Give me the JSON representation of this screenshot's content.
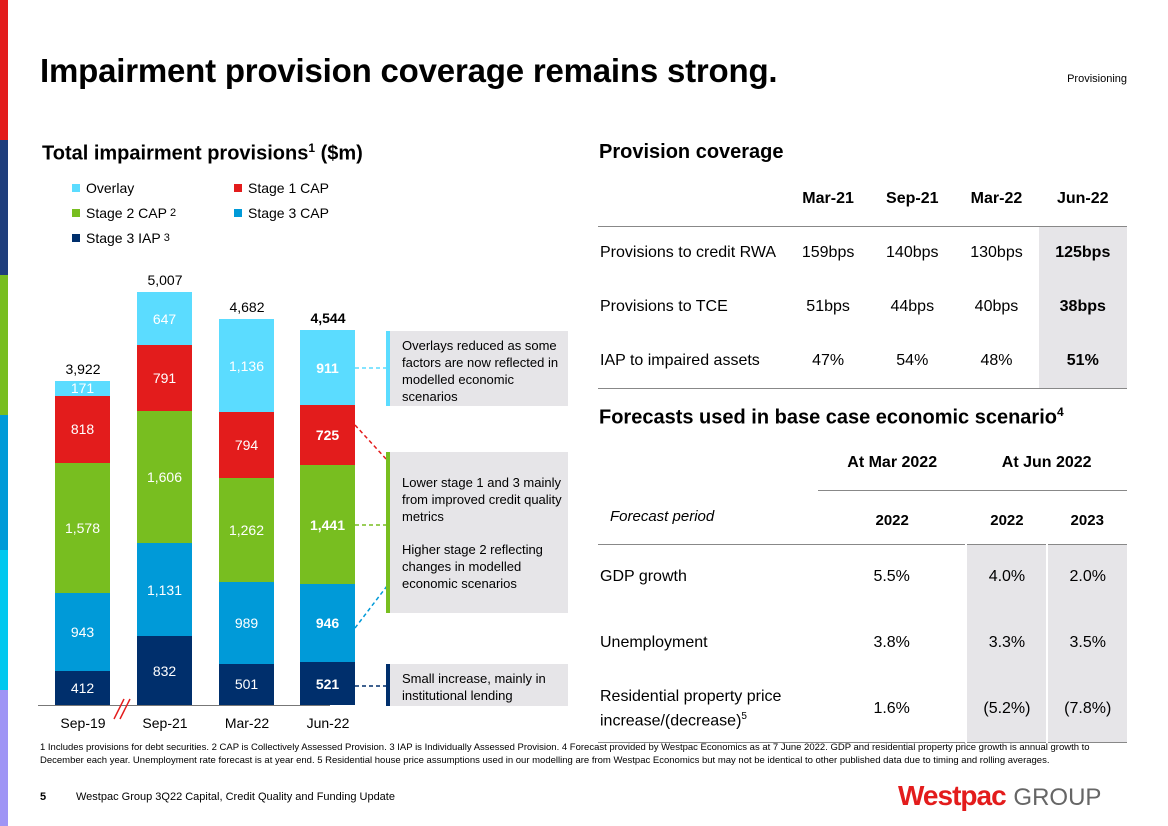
{
  "title": "Impairment provision coverage remains strong.",
  "section_tag": "Provisioning",
  "colors": {
    "overlay": "#5bdcff",
    "stage1": "#e31c1c",
    "stage2": "#78be20",
    "stage3cap": "#009ad8",
    "stage3iap": "#002f6c",
    "stripe": [
      "#e31c1c",
      "#1f3e7c",
      "#78be20",
      "#009ad8",
      "#00c8ef",
      "#9f95f5"
    ]
  },
  "left": {
    "heading": "Total impairment provisions",
    "heading_sup": "1",
    "heading_unit": " ($m)",
    "legend": [
      {
        "label": "Overlay"
      },
      {
        "label": "Stage 1 CAP"
      },
      {
        "label": "Stage 2 CAP",
        "sup": "2"
      },
      {
        "label": "Stage 3 CAP"
      },
      {
        "label": "Stage 3 IAP",
        "sup": "3"
      }
    ],
    "notes": [
      "Overlays reduced as some factors are now reflected in modelled economic scenarios",
      "Lower stage 1 and 3 mainly from improved credit quality metrics",
      "Higher stage 2 reflecting changes in modelled economic scenarios",
      "Small increase, mainly in institutional lending"
    ]
  },
  "chart_data": {
    "type": "bar",
    "stacked": true,
    "title": "Total impairment provisions ($m)",
    "categories": [
      "Sep-19",
      "Sep-21",
      "Mar-22",
      "Jun-22"
    ],
    "totals": [
      "3,922",
      "5,007",
      "4,682",
      "4,544"
    ],
    "series": [
      {
        "name": "Stage 3 IAP",
        "values": [
          412,
          832,
          501,
          521
        ],
        "labels": [
          "412",
          "832",
          "501",
          "521"
        ]
      },
      {
        "name": "Stage 3 CAP",
        "values": [
          943,
          1131,
          989,
          946
        ],
        "labels": [
          "943",
          "1,131",
          "989",
          "946"
        ]
      },
      {
        "name": "Stage 2 CAP",
        "values": [
          1578,
          1606,
          1262,
          1441
        ],
        "labels": [
          "1,578",
          "1,606",
          "1,262",
          "1,441"
        ]
      },
      {
        "name": "Stage 1 CAP",
        "values": [
          818,
          791,
          794,
          725
        ],
        "labels": [
          "818",
          "791",
          "794",
          "725"
        ]
      },
      {
        "name": "Overlay",
        "values": [
          171,
          647,
          1136,
          911
        ],
        "labels": [
          "171",
          "647",
          "1,136",
          "911"
        ]
      }
    ],
    "xlabel": "",
    "ylabel": "",
    "legend": "top-left"
  },
  "coverage": {
    "heading": "Provision coverage",
    "columns": [
      "Mar-21",
      "Sep-21",
      "Mar-22",
      "Jun-22"
    ],
    "rows": [
      {
        "label": "Provisions to credit RWA",
        "values": [
          "159bps",
          "140bps",
          "130bps",
          "125bps"
        ]
      },
      {
        "label": "Provisions to TCE",
        "values": [
          "51bps",
          "44bps",
          "40bps",
          "38bps"
        ]
      },
      {
        "label": "IAP to impaired assets",
        "values": [
          "47%",
          "54%",
          "48%",
          "51%"
        ]
      }
    ]
  },
  "forecasts": {
    "heading": "Forecasts used in base case economic scenario",
    "heading_sup": "4",
    "group1": "At Mar 2022",
    "group2": "At Jun 2022",
    "period_label": "Forecast period",
    "years": [
      "2022",
      "2022",
      "2023"
    ],
    "rows": [
      {
        "label": "GDP growth",
        "values": [
          "5.5%",
          "4.0%",
          "2.0%"
        ]
      },
      {
        "label": "Unemployment",
        "values": [
          "3.8%",
          "3.3%",
          "3.5%"
        ]
      },
      {
        "label": "Residential property price increase/(decrease)",
        "sup": "5",
        "values": [
          "1.6%",
          "(5.2%)",
          "(7.8%)"
        ]
      }
    ]
  },
  "footnote": "1 Includes provisions for debt securities. 2 CAP is Collectively Assessed Provision. 3 IAP is Individually Assessed Provision. 4 Forecast provided by Westpac Economics as at 7 June 2022. GDP and residential property price growth is annual growth to December each year. Unemployment rate forecast is at year end. 5 Residential house price assumptions used in our modelling are from Westpac Economics but may not be identical to other published data due to timing and rolling averages.",
  "footer": {
    "page": "5",
    "text": "Westpac Group 3Q22 Capital, Credit Quality and Funding Update",
    "logo": "Westpac GROUP"
  }
}
